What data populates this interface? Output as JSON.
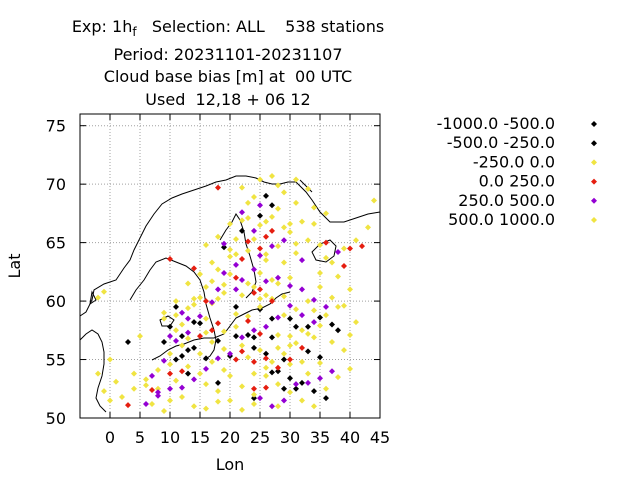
{
  "title_lines": [
    "Exp: 1h",
    "Period: 20231101-20231107",
    "Cloud base bias [m] at  00 UTC",
    "Used  12,18 + 06 12"
  ],
  "title_line1_sub": "f",
  "title_line1_rest": "   Selection: ALL    538 stations",
  "chart_data": {
    "type": "scatter",
    "title": "Cloud base bias [m] at  00 UTC",
    "xlabel": "Lon",
    "ylabel": "Lat",
    "xlim": [
      -5,
      45
    ],
    "ylim": [
      50,
      76
    ],
    "xticks": [
      0,
      5,
      10,
      15,
      20,
      25,
      30,
      35,
      40,
      45
    ],
    "yticks": [
      50,
      55,
      60,
      65,
      70,
      75
    ],
    "grid": true,
    "legend_position": "right",
    "series": [
      {
        "name": "-1000.0 -500.0",
        "color": "#000000",
        "points": [
          [
            13,
            53.8
          ],
          [
            9,
            56.5
          ],
          [
            11,
            59.5
          ],
          [
            14,
            56.0
          ],
          [
            12,
            55.3
          ],
          [
            10,
            57.8
          ],
          [
            26,
            69.0
          ],
          [
            27,
            68.2
          ],
          [
            19,
            64.6
          ],
          [
            22,
            66.0
          ],
          [
            25,
            67.3
          ],
          [
            24,
            56.0
          ],
          [
            26,
            55.5
          ],
          [
            27,
            56.9
          ],
          [
            28,
            54.0
          ],
          [
            30,
            53.4
          ],
          [
            32,
            53.0
          ],
          [
            34,
            52.3
          ],
          [
            33,
            55.7
          ],
          [
            31,
            57.8
          ],
          [
            35,
            58.6
          ],
          [
            35,
            55.2
          ],
          [
            29,
            55.0
          ],
          [
            23,
            57.1
          ],
          [
            3,
            56.5
          ],
          [
            38,
            57.5
          ],
          [
            27,
            58.5
          ],
          [
            21,
            57.0
          ],
          [
            24,
            51.7
          ],
          [
            18,
            56.6
          ],
          [
            36,
            51.7
          ]
        ]
      },
      {
        "name": "-500.0 -250.0",
        "color": "#000000",
        "points": [
          [
            15,
            58.1
          ],
          [
            14,
            58.2
          ],
          [
            12,
            57.0
          ],
          [
            21,
            59.5
          ],
          [
            16,
            55.1
          ],
          [
            11,
            55.0
          ],
          [
            18,
            53.0
          ],
          [
            27,
            53.9
          ],
          [
            30,
            58.5
          ],
          [
            33,
            57.8
          ],
          [
            25,
            59.3
          ],
          [
            24,
            56.9
          ],
          [
            29,
            52.5
          ],
          [
            37,
            58.0
          ],
          [
            20,
            55.3
          ],
          [
            13,
            55.8
          ],
          [
            31,
            52.5
          ]
        ]
      },
      {
        "name": "-250.0 0.0",
        "color": "#f0e442",
        "points": [
          [
            -1,
            60.8
          ],
          [
            9,
            58.5
          ],
          [
            11,
            58.8
          ],
          [
            13,
            59.4
          ],
          [
            15,
            60.3
          ],
          [
            17,
            61.7
          ],
          [
            18,
            62.7
          ],
          [
            20,
            64.4
          ],
          [
            21,
            65.3
          ],
          [
            23,
            67.1
          ],
          [
            24,
            68.9
          ],
          [
            27,
            70.7
          ],
          [
            29,
            69.3
          ],
          [
            22,
            66.9
          ],
          [
            20,
            63.8
          ],
          [
            16,
            58.5
          ],
          [
            14,
            60.2
          ],
          [
            19,
            60.7
          ],
          [
            23,
            61.5
          ],
          [
            25,
            62.4
          ],
          [
            26,
            63.5
          ],
          [
            28,
            64.7
          ],
          [
            30,
            65.9
          ],
          [
            32,
            66.8
          ],
          [
            34,
            68.0
          ],
          [
            36,
            67.5
          ],
          [
            26,
            60.5
          ],
          [
            28,
            61.5
          ],
          [
            30,
            62.0
          ],
          [
            27,
            60.2
          ],
          [
            29,
            58.8
          ],
          [
            31,
            59.3
          ],
          [
            33,
            60.0
          ],
          [
            35,
            61.2
          ],
          [
            22,
            56.2
          ],
          [
            23,
            55.2
          ],
          [
            25,
            55.8
          ],
          [
            27,
            54.8
          ],
          [
            29,
            55.5
          ],
          [
            31,
            56.4
          ],
          [
            33,
            57.2
          ],
          [
            35,
            57.9
          ],
          [
            37,
            56.5
          ],
          [
            39,
            55.8
          ],
          [
            26,
            53.6
          ],
          [
            28,
            52.9
          ],
          [
            30,
            52.2
          ],
          [
            32,
            51.5
          ],
          [
            34,
            51.0
          ],
          [
            36,
            52.5
          ],
          [
            38,
            53.5
          ],
          [
            40,
            54.2
          ],
          [
            6,
            53.3
          ],
          [
            8,
            52.5
          ],
          [
            10,
            51.5
          ],
          [
            12,
            51.8
          ],
          [
            14,
            51.0
          ],
          [
            16,
            50.8
          ],
          [
            18,
            52.3
          ],
          [
            20,
            51.5
          ],
          [
            22,
            50.7
          ],
          [
            24,
            52.0
          ],
          [
            7,
            51.2
          ],
          [
            9,
            50.6
          ],
          [
            11,
            53.2
          ],
          [
            13,
            54.4
          ],
          [
            15,
            53.8
          ],
          [
            17,
            54.8
          ],
          [
            19,
            55.9
          ],
          [
            21,
            57.8
          ],
          [
            23,
            58.7
          ],
          [
            25,
            59.5
          ],
          [
            27,
            61.8
          ],
          [
            29,
            63.3
          ],
          [
            31,
            64.1
          ],
          [
            33,
            65.2
          ],
          [
            35,
            64.8
          ],
          [
            37,
            63.3
          ],
          [
            39,
            64.5
          ],
          [
            41,
            65.2
          ],
          [
            43,
            66.3
          ],
          [
            44,
            68.6
          ],
          [
            20,
            66.6
          ],
          [
            21,
            64.0
          ],
          [
            24,
            65.3
          ],
          [
            26,
            66.8
          ],
          [
            28,
            67.9
          ],
          [
            19,
            61.4
          ],
          [
            17,
            59.8
          ],
          [
            16,
            57.3
          ],
          [
            12,
            56.2
          ],
          [
            10,
            54.6
          ],
          [
            11,
            60.0
          ],
          [
            13,
            61.5
          ],
          [
            15,
            62.3
          ],
          [
            17,
            63.3
          ],
          [
            16,
            64.8
          ],
          [
            18,
            65.5
          ],
          [
            22,
            69.7
          ],
          [
            23,
            68.4
          ],
          [
            25,
            70.4
          ],
          [
            28,
            69.9
          ],
          [
            31,
            70.4
          ],
          [
            40,
            61.0
          ],
          [
            38,
            59.5
          ],
          [
            36,
            58.8
          ],
          [
            34,
            56.9
          ],
          [
            30,
            54.6
          ],
          [
            24,
            53.8
          ],
          [
            19,
            54.1
          ],
          [
            22,
            60.5
          ],
          [
            24,
            61.2
          ],
          [
            26,
            64.0
          ],
          [
            29,
            60.4
          ],
          [
            28,
            57.1
          ],
          [
            30,
            56.2
          ],
          [
            32,
            54.8
          ],
          [
            33,
            53.8
          ],
          [
            35,
            54.7
          ],
          [
            2,
            51.8
          ],
          [
            4,
            52.5
          ],
          [
            1,
            53.1
          ],
          [
            5,
            57.0
          ],
          [
            0,
            55.0
          ]
        ]
      },
      {
        "name": "0.0 250.0",
        "color": "#e51e10",
        "points": [
          [
            18,
            69.7
          ],
          [
            23,
            65.1
          ],
          [
            25,
            64.5
          ],
          [
            26,
            65.5
          ],
          [
            27,
            66.0
          ],
          [
            21,
            62.0
          ],
          [
            22,
            63.6
          ],
          [
            24,
            60.7
          ],
          [
            25,
            61.0
          ],
          [
            27,
            60.0
          ],
          [
            23,
            58.3
          ],
          [
            25,
            57.2
          ],
          [
            21,
            55.0
          ],
          [
            22,
            55.7
          ],
          [
            24,
            54.8
          ],
          [
            26,
            55.1
          ],
          [
            28,
            54.3
          ],
          [
            30,
            55.0
          ],
          [
            32,
            56.0
          ],
          [
            17,
            57.5
          ],
          [
            15,
            57.0
          ],
          [
            12,
            54.0
          ],
          [
            10,
            53.8
          ],
          [
            7,
            52.4
          ],
          [
            3,
            51.1
          ],
          [
            40,
            64.5
          ],
          [
            42,
            64.7
          ],
          [
            39,
            63.0
          ],
          [
            36,
            65.0
          ],
          [
            16,
            60.0
          ],
          [
            18,
            58.1
          ],
          [
            14,
            62.8
          ],
          [
            10,
            63.6
          ],
          [
            26,
            52.6
          ],
          [
            24,
            52.5
          ]
        ]
      },
      {
        "name": "250.0 500.0",
        "color": "#9400d3",
        "points": [
          [
            7,
            53.6
          ],
          [
            8,
            52.2
          ],
          [
            9,
            54.9
          ],
          [
            11,
            56.6
          ],
          [
            13,
            57.3
          ],
          [
            15,
            58.7
          ],
          [
            17,
            59.9
          ],
          [
            18,
            61.0
          ],
          [
            19,
            62.4
          ],
          [
            21,
            63.1
          ],
          [
            22,
            61.8
          ],
          [
            24,
            62.7
          ],
          [
            25,
            63.9
          ],
          [
            26,
            61.7
          ],
          [
            28,
            62.0
          ],
          [
            30,
            61.3
          ],
          [
            32,
            61.0
          ],
          [
            34,
            60.1
          ],
          [
            36,
            59.5
          ],
          [
            34,
            58.2
          ],
          [
            32,
            58.8
          ],
          [
            30,
            59.6
          ],
          [
            28,
            58.6
          ],
          [
            26,
            57.8
          ],
          [
            24,
            57.5
          ],
          [
            22,
            56.9
          ],
          [
            20,
            55.5
          ],
          [
            18,
            55.1
          ],
          [
            16,
            54.2
          ],
          [
            14,
            53.3
          ],
          [
            12,
            52.6
          ],
          [
            10,
            52.5
          ],
          [
            8,
            51.9
          ],
          [
            6,
            51.2
          ],
          [
            25,
            51.7
          ],
          [
            27,
            51.0
          ],
          [
            29,
            51.5
          ],
          [
            31,
            52.9
          ],
          [
            33,
            53.0
          ],
          [
            35,
            53.4
          ],
          [
            37,
            54.0
          ],
          [
            27,
            64.7
          ],
          [
            29,
            65.2
          ],
          [
            32,
            63.5
          ],
          [
            38,
            64.2
          ],
          [
            21,
            61.0
          ],
          [
            19,
            64.9
          ],
          [
            24,
            66.0
          ],
          [
            22,
            67.6
          ],
          [
            25,
            68.2
          ],
          [
            13,
            58.5
          ],
          [
            10,
            57.0
          ],
          [
            12,
            59.0
          ]
        ]
      },
      {
        "name": "500.0 1000.0",
        "color": "#f0e442",
        "points": [
          [
            40,
            57.1
          ],
          [
            39,
            59.6
          ],
          [
            37,
            60.3
          ],
          [
            41,
            58.2
          ],
          [
            38,
            62.1
          ],
          [
            30,
            66.6
          ],
          [
            31,
            68.4
          ],
          [
            33,
            69.6
          ],
          [
            34,
            66.6
          ],
          [
            36,
            63.7
          ],
          [
            25,
            60.2
          ],
          [
            21,
            58.9
          ],
          [
            19,
            57.4
          ],
          [
            17,
            56.5
          ],
          [
            15,
            55.5
          ],
          [
            13,
            56.8
          ],
          [
            11,
            57.5
          ],
          [
            9,
            59.0
          ],
          [
            16,
            52.9
          ],
          [
            18,
            51.4
          ],
          [
            20,
            53.6
          ],
          [
            22,
            52.7
          ],
          [
            24,
            51.2
          ],
          [
            28,
            51.0
          ],
          [
            26,
            54.3
          ],
          [
            28,
            56.0
          ],
          [
            30,
            57.0
          ],
          [
            32,
            57.5
          ],
          [
            34,
            59.2
          ],
          [
            35,
            62.4
          ],
          [
            31,
            64.9
          ],
          [
            29,
            66.3
          ],
          [
            27,
            67.2
          ],
          [
            25,
            66.5
          ],
          [
            23,
            64.3
          ],
          [
            20,
            62.3
          ],
          [
            18,
            60.2
          ],
          [
            16,
            61.2
          ],
          [
            14,
            59.7
          ],
          [
            12,
            58.0
          ],
          [
            10,
            55.5
          ],
          [
            8,
            54.1
          ],
          [
            6,
            52.8
          ],
          [
            4,
            53.8
          ],
          [
            -2,
            60.3
          ],
          [
            -2,
            53.8
          ],
          [
            0,
            51.5
          ],
          [
            -1,
            52.3
          ]
        ]
      }
    ]
  }
}
